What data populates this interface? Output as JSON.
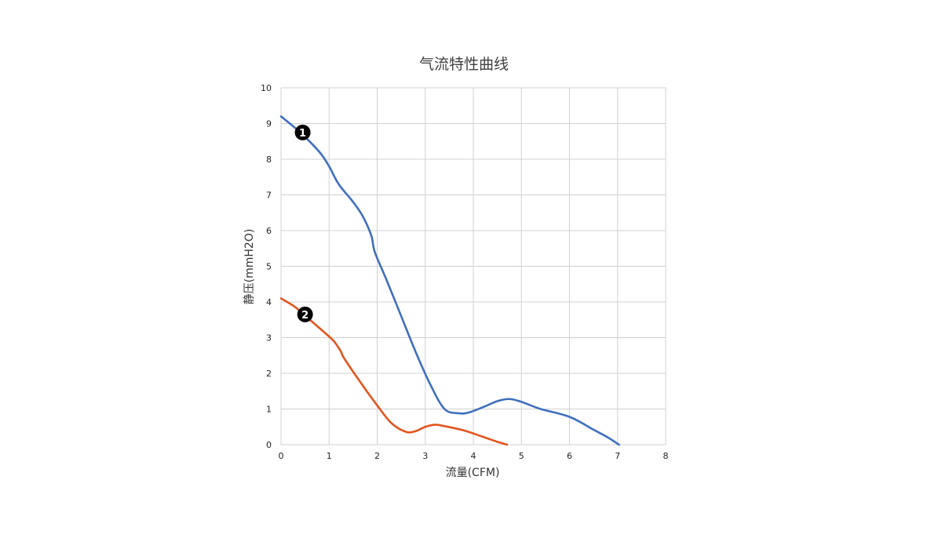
{
  "chart_data": {
    "type": "line",
    "title": "气流特性曲线",
    "xlabel": "流量(CFM)",
    "ylabel": "静压(mmH2O)",
    "xlim": [
      0,
      8
    ],
    "ylim": [
      0,
      10
    ],
    "x_ticks": [
      "0",
      "1",
      "2",
      "3",
      "4",
      "5",
      "6",
      "7",
      "8"
    ],
    "y_ticks": [
      "0",
      "1",
      "2",
      "3",
      "4",
      "5",
      "6",
      "7",
      "8",
      "9",
      "10"
    ],
    "grid": true,
    "series": [
      {
        "marker": "1",
        "color": "#3f6fbe",
        "x": [
          0,
          0.4,
          0.8,
          1.0,
          1.2,
          1.5,
          1.7,
          1.88,
          1.95,
          2.2,
          2.5,
          2.8,
          3.1,
          3.4,
          3.7,
          3.9,
          4.2,
          4.5,
          4.75,
          5.0,
          5.4,
          6.0,
          6.5,
          6.8,
          7.03
        ],
        "y": [
          9.2,
          8.75,
          8.2,
          7.8,
          7.3,
          6.8,
          6.4,
          5.85,
          5.4,
          4.6,
          3.6,
          2.6,
          1.7,
          1.0,
          0.88,
          0.9,
          1.05,
          1.22,
          1.28,
          1.2,
          1.0,
          0.78,
          0.42,
          0.2,
          0.0
        ]
      },
      {
        "marker": "2",
        "color": "#e2551e",
        "x": [
          0,
          0.3,
          0.6,
          0.9,
          1.1,
          1.25,
          1.3,
          1.6,
          2.0,
          2.3,
          2.6,
          2.8,
          3.0,
          3.2,
          3.4,
          3.8,
          4.2,
          4.5,
          4.7
        ],
        "y": [
          4.1,
          3.85,
          3.5,
          3.15,
          2.9,
          2.6,
          2.45,
          1.85,
          1.1,
          0.6,
          0.36,
          0.38,
          0.5,
          0.56,
          0.52,
          0.4,
          0.22,
          0.08,
          0.0
        ]
      }
    ]
  }
}
